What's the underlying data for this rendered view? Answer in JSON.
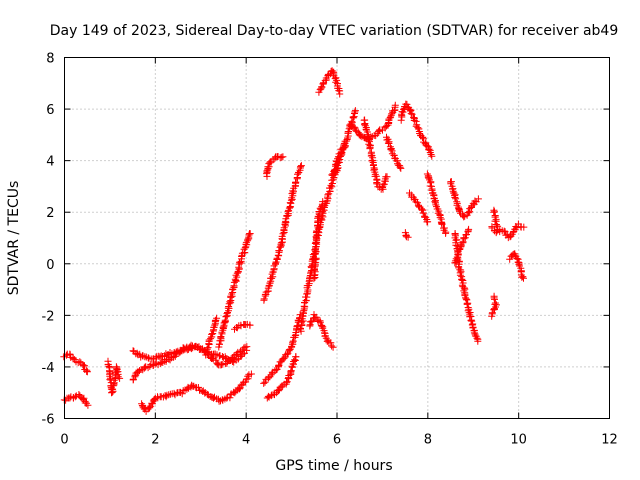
{
  "chart_data": {
    "type": "scatter",
    "title": "Day 149 of 2023, Sidereal Day-to-day VTEC variation (SDTVAR) for receiver ab49",
    "xlabel": "GPS time / hours",
    "ylabel": "SDTVAR / TECUs",
    "xlim": [
      0,
      12
    ],
    "ylim": [
      -6,
      8
    ],
    "x_ticks": [
      "0",
      "2",
      "4",
      "6",
      "8",
      "10",
      "12"
    ],
    "y_ticks": [
      "-6",
      "-4",
      "-2",
      "0",
      "2",
      "4",
      "6",
      "8"
    ],
    "grid": true,
    "marker": "+",
    "marker_color": "#ff0000",
    "tracks": [
      {
        "points": [
          [
            0.0,
            -3.6
          ],
          [
            0.1,
            -3.5
          ],
          [
            0.2,
            -3.7
          ],
          [
            0.3,
            -3.8
          ],
          [
            0.45,
            -4.0
          ],
          [
            0.5,
            -4.2
          ]
        ]
      },
      {
        "points": [
          [
            0.0,
            -5.3
          ],
          [
            0.15,
            -5.2
          ],
          [
            0.3,
            -5.1
          ],
          [
            0.4,
            -5.2
          ],
          [
            0.5,
            -5.5
          ]
        ]
      },
      {
        "points": [
          [
            0.95,
            -3.8
          ],
          [
            1.0,
            -4.3
          ],
          [
            1.05,
            -5.0
          ],
          [
            1.1,
            -4.6
          ],
          [
            1.15,
            -4.0
          ],
          [
            1.2,
            -4.4
          ]
        ]
      },
      {
        "points": [
          [
            1.5,
            -3.4
          ],
          [
            1.7,
            -3.6
          ],
          [
            1.9,
            -3.7
          ],
          [
            2.1,
            -3.6
          ],
          [
            2.3,
            -3.5
          ],
          [
            2.5,
            -3.4
          ],
          [
            2.7,
            -3.3
          ],
          [
            2.9,
            -3.2
          ],
          [
            3.1,
            -3.4
          ],
          [
            3.3,
            -3.5
          ],
          [
            3.5,
            -3.6
          ],
          [
            3.7,
            -3.8
          ],
          [
            3.9,
            -3.6
          ],
          [
            4.0,
            -3.4
          ]
        ]
      },
      {
        "points": [
          [
            1.5,
            -4.5
          ],
          [
            1.6,
            -4.2
          ],
          [
            1.8,
            -4.0
          ],
          [
            2.0,
            -3.9
          ],
          [
            2.2,
            -3.8
          ],
          [
            2.4,
            -3.6
          ],
          [
            2.6,
            -3.3
          ],
          [
            2.8,
            -3.2
          ],
          [
            3.0,
            -3.3
          ],
          [
            3.2,
            -3.6
          ],
          [
            3.4,
            -3.9
          ],
          [
            3.6,
            -3.8
          ],
          [
            3.8,
            -3.5
          ],
          [
            4.0,
            -3.2
          ]
        ]
      },
      {
        "points": [
          [
            1.7,
            -5.4
          ],
          [
            1.8,
            -5.7
          ],
          [
            1.9,
            -5.5
          ],
          [
            2.0,
            -5.2
          ],
          [
            2.3,
            -5.1
          ],
          [
            2.6,
            -5.0
          ],
          [
            2.8,
            -4.7
          ],
          [
            3.0,
            -4.9
          ],
          [
            3.2,
            -5.1
          ],
          [
            3.4,
            -5.3
          ],
          [
            3.6,
            -5.2
          ],
          [
            3.8,
            -4.9
          ],
          [
            4.0,
            -4.5
          ],
          [
            4.1,
            -4.3
          ]
        ]
      },
      {
        "points": [
          [
            3.1,
            -3.5
          ],
          [
            3.2,
            -3.0
          ],
          [
            3.3,
            -2.5
          ],
          [
            3.35,
            -2.1
          ]
        ]
      },
      {
        "points": [
          [
            3.4,
            -3.2
          ],
          [
            3.5,
            -2.5
          ],
          [
            3.6,
            -1.8
          ],
          [
            3.7,
            -1.1
          ],
          [
            3.8,
            -0.4
          ],
          [
            3.9,
            0.2
          ],
          [
            4.0,
            0.7
          ],
          [
            4.1,
            1.2
          ]
        ]
      },
      {
        "points": [
          [
            3.75,
            -2.5
          ],
          [
            3.9,
            -2.4
          ],
          [
            4.1,
            -2.4
          ]
        ]
      },
      {
        "points": [
          [
            4.4,
            -1.4
          ],
          [
            4.5,
            -0.9
          ],
          [
            4.6,
            -0.3
          ],
          [
            4.7,
            0.3
          ],
          [
            4.8,
            1.0
          ],
          [
            4.9,
            1.8
          ],
          [
            5.0,
            2.5
          ],
          [
            5.1,
            3.2
          ],
          [
            5.2,
            3.8
          ]
        ]
      },
      {
        "points": [
          [
            4.45,
            3.4
          ],
          [
            4.5,
            3.8
          ],
          [
            4.55,
            4.0
          ],
          [
            4.65,
            4.1
          ],
          [
            4.8,
            4.2
          ]
        ]
      },
      {
        "points": [
          [
            4.4,
            -4.6
          ],
          [
            4.5,
            -4.4
          ],
          [
            4.6,
            -4.2
          ],
          [
            4.7,
            -4.0
          ],
          [
            4.8,
            -3.7
          ],
          [
            4.9,
            -3.5
          ],
          [
            5.0,
            -3.2
          ],
          [
            5.1,
            -2.6
          ],
          [
            5.2,
            -2.0
          ]
        ]
      },
      {
        "points": [
          [
            4.45,
            -5.2
          ],
          [
            4.6,
            -5.1
          ],
          [
            4.7,
            -4.9
          ],
          [
            4.9,
            -4.6
          ],
          [
            5.0,
            -4.1
          ],
          [
            5.1,
            -3.6
          ]
        ]
      },
      {
        "points": [
          [
            5.2,
            -2.6
          ],
          [
            5.3,
            -1.5
          ],
          [
            5.4,
            -0.5
          ],
          [
            5.5,
            0.5
          ],
          [
            5.6,
            1.3
          ],
          [
            5.7,
            2.0
          ],
          [
            5.8,
            2.6
          ],
          [
            5.9,
            3.2
          ],
          [
            6.0,
            3.7
          ],
          [
            6.1,
            4.3
          ],
          [
            6.2,
            4.8
          ],
          [
            6.3,
            5.4
          ],
          [
            6.4,
            5.9
          ]
        ]
      },
      {
        "points": [
          [
            5.4,
            -2.4
          ],
          [
            5.5,
            -2.0
          ],
          [
            5.6,
            -2.2
          ],
          [
            5.7,
            -2.6
          ],
          [
            5.8,
            -3.0
          ],
          [
            5.9,
            -3.2
          ]
        ]
      },
      {
        "points": [
          [
            5.5,
            -0.6
          ],
          [
            5.55,
            1.0
          ],
          [
            5.6,
            2.0
          ],
          [
            5.7,
            2.4
          ]
        ]
      },
      {
        "points": [
          [
            5.6,
            6.7
          ],
          [
            5.7,
            7.0
          ],
          [
            5.8,
            7.3
          ],
          [
            5.9,
            7.5
          ],
          [
            6.0,
            7.0
          ],
          [
            6.05,
            6.6
          ]
        ]
      },
      {
        "points": [
          [
            5.9,
            3.4
          ],
          [
            6.0,
            4.0
          ],
          [
            6.1,
            4.4
          ],
          [
            6.2,
            4.6
          ]
        ]
      },
      {
        "points": [
          [
            6.3,
            5.4
          ],
          [
            6.5,
            5.0
          ],
          [
            6.7,
            4.8
          ],
          [
            6.9,
            5.1
          ],
          [
            7.1,
            5.3
          ],
          [
            7.2,
            5.8
          ],
          [
            7.3,
            6.1
          ]
        ]
      },
      {
        "points": [
          [
            6.6,
            5.6
          ],
          [
            6.7,
            4.8
          ],
          [
            6.8,
            3.8
          ],
          [
            6.9,
            3.0
          ],
          [
            7.0,
            2.9
          ],
          [
            7.1,
            3.4
          ]
        ]
      },
      {
        "points": [
          [
            7.1,
            4.9
          ],
          [
            7.2,
            4.4
          ],
          [
            7.3,
            4.0
          ],
          [
            7.4,
            3.7
          ]
        ]
      },
      {
        "points": [
          [
            7.4,
            5.6
          ],
          [
            7.5,
            6.2
          ],
          [
            7.6,
            6.0
          ],
          [
            7.7,
            5.6
          ],
          [
            7.8,
            5.2
          ],
          [
            7.9,
            4.8
          ],
          [
            8.0,
            4.5
          ],
          [
            8.1,
            4.2
          ]
        ]
      },
      {
        "points": [
          [
            7.6,
            2.7
          ],
          [
            7.7,
            2.5
          ],
          [
            7.8,
            2.3
          ],
          [
            7.9,
            2.0
          ],
          [
            8.0,
            1.6
          ]
        ]
      },
      {
        "points": [
          [
            7.5,
            1.2
          ],
          [
            7.55,
            1.0
          ]
        ]
      },
      {
        "points": [
          [
            8.0,
            3.5
          ],
          [
            8.1,
            2.8
          ],
          [
            8.2,
            2.2
          ],
          [
            8.3,
            1.6
          ],
          [
            8.4,
            1.2
          ]
        ]
      },
      {
        "points": [
          [
            8.5,
            3.2
          ],
          [
            8.6,
            2.6
          ],
          [
            8.7,
            2.0
          ],
          [
            8.8,
            1.8
          ],
          [
            8.9,
            2.0
          ],
          [
            9.0,
            2.3
          ],
          [
            9.1,
            2.5
          ]
        ]
      },
      {
        "points": [
          [
            8.6,
            1.2
          ],
          [
            8.65,
            0.5
          ],
          [
            8.7,
            -0.2
          ],
          [
            8.8,
            -1.0
          ],
          [
            8.9,
            -1.8
          ],
          [
            9.0,
            -2.5
          ],
          [
            9.1,
            -3.0
          ]
        ]
      },
      {
        "points": [
          [
            8.6,
            0.0
          ],
          [
            8.7,
            0.6
          ],
          [
            8.8,
            1.0
          ],
          [
            8.9,
            1.3
          ]
        ]
      },
      {
        "points": [
          [
            9.4,
            1.4
          ],
          [
            9.5,
            1.2
          ],
          [
            9.6,
            1.3
          ],
          [
            9.7,
            1.2
          ],
          [
            9.8,
            1.0
          ],
          [
            9.9,
            1.3
          ],
          [
            10.0,
            1.5
          ],
          [
            10.1,
            1.4
          ]
        ]
      },
      {
        "points": [
          [
            9.45,
            2.1
          ],
          [
            9.5,
            1.6
          ],
          [
            9.55,
            1.3
          ]
        ]
      },
      {
        "points": [
          [
            9.45,
            -1.3
          ],
          [
            9.5,
            -1.6
          ],
          [
            9.4,
            -2.0
          ]
        ]
      },
      {
        "points": [
          [
            9.8,
            0.2
          ],
          [
            9.9,
            0.4
          ],
          [
            10.0,
            0.1
          ],
          [
            10.05,
            -0.3
          ],
          [
            10.1,
            -0.6
          ]
        ]
      }
    ]
  }
}
